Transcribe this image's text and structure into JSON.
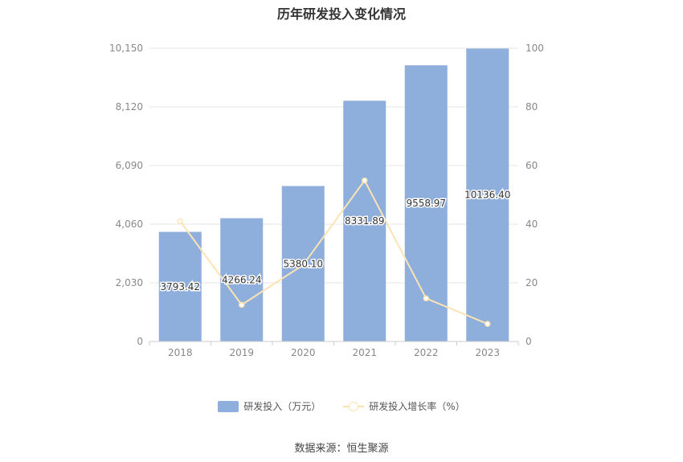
{
  "chart_data": {
    "type": "bar",
    "title": "历年研发投入变化情况",
    "categories": [
      "2018",
      "2019",
      "2020",
      "2021",
      "2022",
      "2023"
    ],
    "series": [
      {
        "name": "研发投入（万元）",
        "type": "bar",
        "axis": "left",
        "color": "#8eaedc",
        "values": [
          3793.42,
          4266.24,
          5380.1,
          8331.89,
          9558.97,
          10136.4
        ],
        "labels": [
          "3793.42",
          "4266.24",
          "5380.10",
          "8331.89",
          "9558.97",
          "10136.40"
        ]
      },
      {
        "name": "研发投入增长率（%）",
        "type": "line",
        "axis": "right",
        "color": "#fbe3b5",
        "values": [
          41,
          12.5,
          26.1,
          54.9,
          14.7,
          6
        ]
      }
    ],
    "y_left": {
      "ylim": [
        0,
        10150
      ],
      "ticks": [
        0,
        2030,
        4060,
        6090,
        8120,
        10150
      ],
      "tick_labels": [
        "0",
        "2,030",
        "4,060",
        "6,090",
        "8,120",
        "10,150"
      ]
    },
    "y_right": {
      "ylim": [
        0,
        100
      ],
      "ticks": [
        0,
        20,
        40,
        60,
        80,
        100
      ],
      "tick_labels": [
        "0",
        "20",
        "40",
        "60",
        "80",
        "100"
      ]
    },
    "grid": true,
    "legend": "bottom-center"
  },
  "source": "数据来源：恒生聚源"
}
